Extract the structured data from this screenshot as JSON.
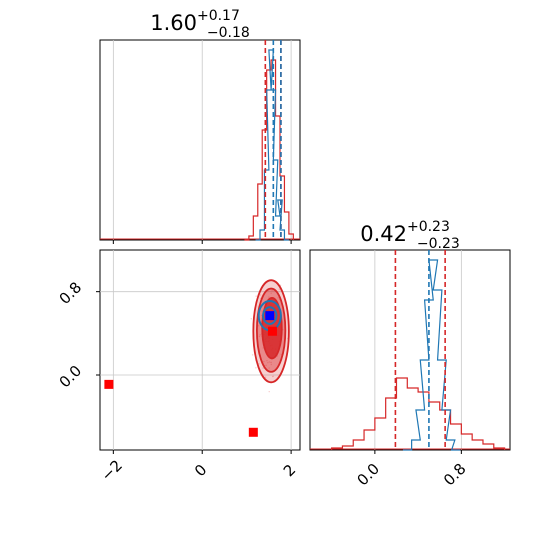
{
  "colors": {
    "red": "#d62728",
    "blue": "#1f77b4",
    "marker_red": "#ff0000",
    "marker_blue": "#0000ff",
    "grid": "#c8c8c8"
  },
  "chart_data": [
    {
      "type": "histogram",
      "panel": "top-left marginal",
      "title_value": "1.60",
      "title_plus": "+0.17",
      "title_minus": "−0.18",
      "xlim": [
        -2.3,
        2.2
      ],
      "xticks": [
        -2,
        0,
        2
      ],
      "grid": true,
      "vlines": {
        "red": [
          1.42,
          1.77
        ],
        "blue": [
          1.6,
          1.77
        ]
      },
      "series": [
        {
          "color": "red",
          "x": [
            1.0,
            1.1,
            1.2,
            1.3,
            1.4,
            1.5,
            1.6,
            1.7,
            1.8,
            1.9,
            2.0
          ],
          "y": [
            0.0,
            0.02,
            0.12,
            0.28,
            0.55,
            0.85,
            0.9,
            0.62,
            0.32,
            0.14,
            0.03
          ]
        },
        {
          "color": "blue",
          "x": [
            1.25,
            1.35,
            1.45,
            1.5,
            1.55,
            1.6,
            1.65,
            1.7,
            1.75,
            1.8,
            1.9
          ],
          "y": [
            0.0,
            0.05,
            0.35,
            0.75,
            0.95,
            0.75,
            0.4,
            0.12,
            0.2,
            0.05,
            0.0
          ]
        }
      ]
    },
    {
      "type": "histogram",
      "panel": "bottom-right marginal",
      "title_value": "0.42",
      "title_plus": "+0.23",
      "title_minus": "−0.23",
      "xlim": [
        -0.6,
        1.25
      ],
      "xticks": [
        "0.0",
        "0.8"
      ],
      "grid": true,
      "vlines": {
        "red": [
          0.19,
          0.65
        ],
        "blue": [
          0.5
        ]
      },
      "series": [
        {
          "color": "red",
          "x": [
            -0.35,
            -0.25,
            -0.15,
            -0.05,
            0.05,
            0.15,
            0.25,
            0.35,
            0.45,
            0.55,
            0.65,
            0.75,
            0.85,
            0.95,
            1.05,
            1.15
          ],
          "y": [
            0.01,
            0.02,
            0.05,
            0.1,
            0.16,
            0.26,
            0.36,
            0.31,
            0.29,
            0.24,
            0.2,
            0.13,
            0.08,
            0.05,
            0.03,
            0.01
          ]
        },
        {
          "color": "blue",
          "x": [
            0.3,
            0.38,
            0.42,
            0.46,
            0.5,
            0.54,
            0.58,
            0.62,
            0.66,
            0.7,
            0.75
          ],
          "y": [
            0.0,
            0.05,
            0.2,
            0.45,
            0.75,
            0.95,
            0.8,
            0.45,
            0.2,
            0.05,
            0.0
          ]
        }
      ]
    },
    {
      "type": "scatter-contour",
      "panel": "bottom-left joint",
      "xlim": [
        -2.3,
        2.2
      ],
      "ylim": [
        -0.72,
        1.2
      ],
      "xticks": [
        -2,
        0,
        2
      ],
      "yticks": [
        "0.0",
        "0.8"
      ],
      "grid": true,
      "red_contours": [
        {
          "cx": 1.55,
          "cy": 0.42,
          "rx": 0.4,
          "ry": 0.49
        },
        {
          "cx": 1.55,
          "cy": 0.43,
          "rx": 0.32,
          "ry": 0.4
        },
        {
          "cx": 1.57,
          "cy": 0.45,
          "rx": 0.22,
          "ry": 0.29
        }
      ],
      "blue_contours": [
        {
          "cx": 1.52,
          "cy": 0.57,
          "rx": 0.25,
          "ry": 0.14
        },
        {
          "cx": 1.52,
          "cy": 0.57,
          "rx": 0.15,
          "ry": 0.08
        }
      ],
      "markers": [
        {
          "color": "marker_red",
          "x": -2.1,
          "y": -0.09
        },
        {
          "color": "marker_red",
          "x": 1.15,
          "y": -0.55
        },
        {
          "color": "marker_red",
          "x": 1.58,
          "y": 0.42
        },
        {
          "color": "marker_blue",
          "x": 1.52,
          "y": 0.57
        }
      ]
    }
  ]
}
